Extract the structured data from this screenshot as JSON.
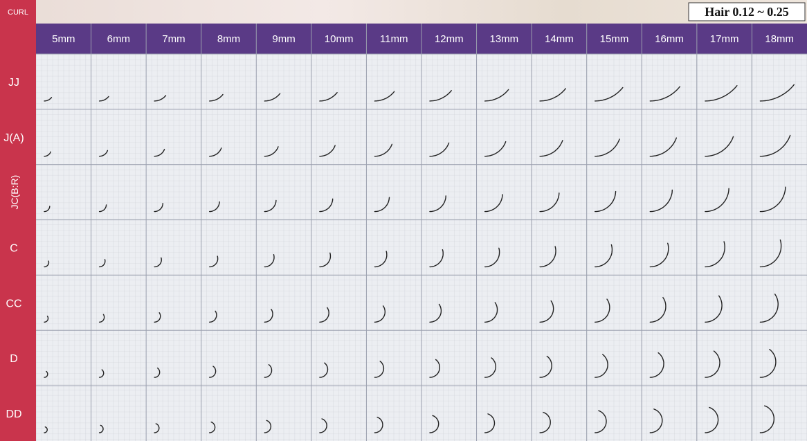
{
  "header": {
    "curl_label": "CURL",
    "hair_label": "Hair 0.12 ~ 0.25"
  },
  "columns": [
    "5mm",
    "6mm",
    "7mm",
    "8mm",
    "9mm",
    "10mm",
    "11mm",
    "12mm",
    "13mm",
    "14mm",
    "15mm",
    "16mm",
    "17mm",
    "18mm"
  ],
  "rows": [
    "JJ",
    "J(A)",
    "JC(B:R)",
    "C",
    "CC",
    "D",
    "DD"
  ]
}
